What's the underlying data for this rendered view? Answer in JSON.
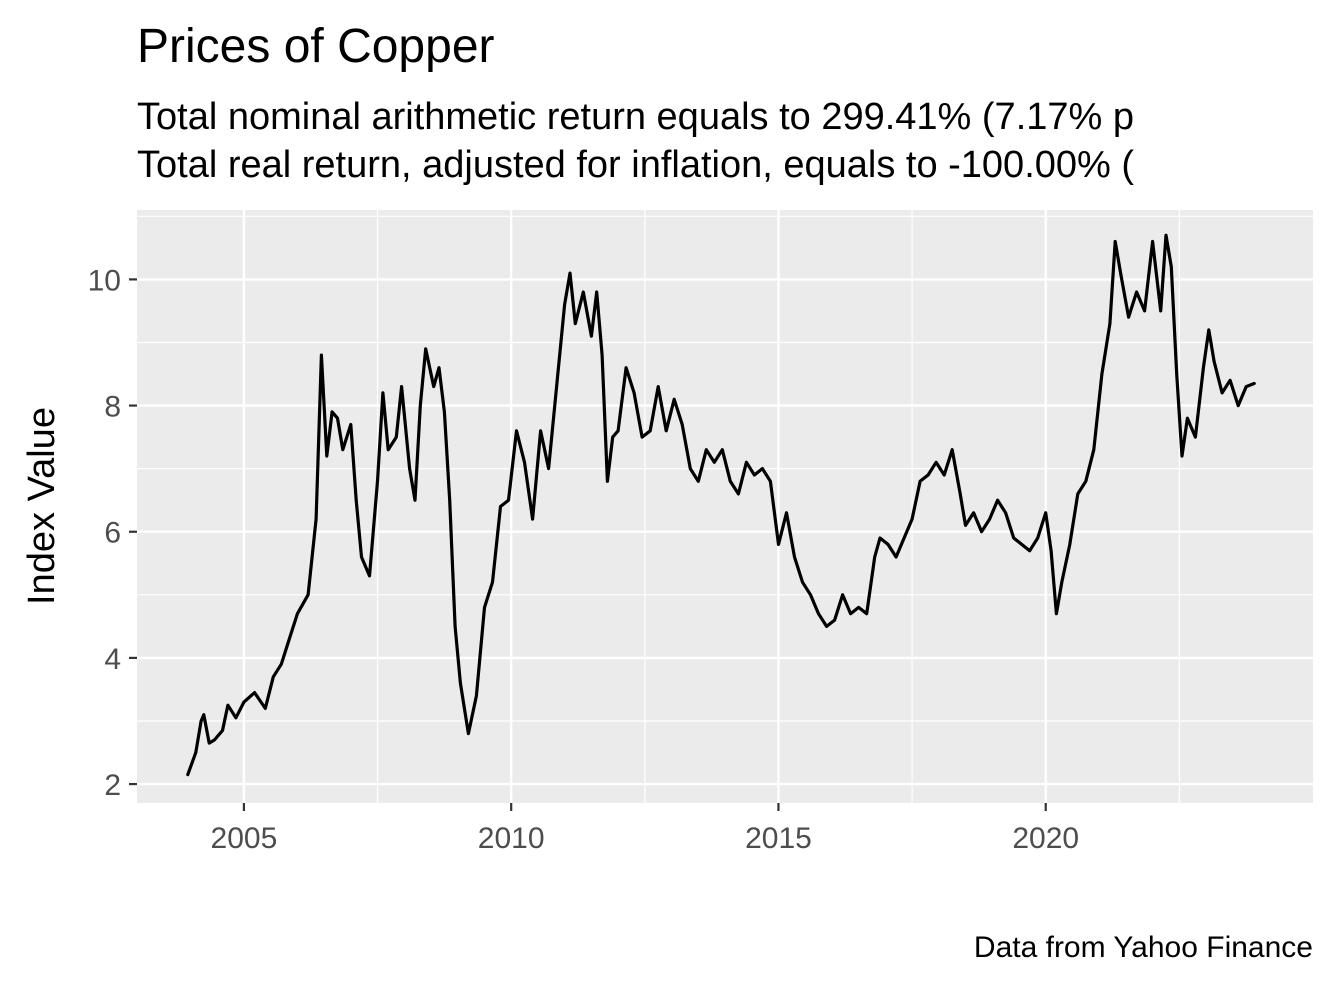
{
  "chart_data": {
    "type": "line",
    "title": "Prices of Copper",
    "subtitle_lines": [
      "Total nominal arithmetic return equals to 299.41% (7.17% p",
      "Total real return, adjusted for inflation, equals to -100.00% ("
    ],
    "xlabel": "",
    "ylabel": "Index Value",
    "caption": "Data from Yahoo Finance",
    "xlim": [
      2003.0,
      2025.0
    ],
    "ylim": [
      1.7,
      11.1
    ],
    "x_ticks": [
      2005,
      2010,
      2015,
      2020
    ],
    "x_tick_labels": [
      "2005",
      "2010",
      "2015",
      "2020"
    ],
    "y_ticks": [
      2,
      4,
      6,
      8,
      10
    ],
    "y_tick_labels": [
      "2",
      "4",
      "6",
      "8",
      "10"
    ],
    "grid": true,
    "colors": {
      "panel": "#ebebeb",
      "grid": "#ffffff",
      "line": "#000000",
      "tick_text": "#4d4d4d"
    },
    "series": [
      {
        "x": [
          2003.95,
          2004.1,
          2004.2,
          2004.25,
          2004.35,
          2004.45,
          2004.6,
          2004.7,
          2004.85,
          2005.0,
          2005.2,
          2005.4,
          2005.55,
          2005.7,
          2005.85,
          2006.0,
          2006.2,
          2006.35,
          2006.45,
          2006.55,
          2006.65,
          2006.75,
          2006.85,
          2007.0,
          2007.1,
          2007.2,
          2007.35,
          2007.5,
          2007.6,
          2007.7,
          2007.85,
          2007.95,
          2008.1,
          2008.2,
          2008.3,
          2008.4,
          2008.55,
          2008.65,
          2008.75,
          2008.85,
          2008.95,
          2009.05,
          2009.2,
          2009.35,
          2009.5,
          2009.65,
          2009.8,
          2009.95,
          2010.1,
          2010.25,
          2010.4,
          2010.55,
          2010.7,
          2010.85,
          2011.0,
          2011.1,
          2011.2,
          2011.35,
          2011.5,
          2011.6,
          2011.7,
          2011.8,
          2011.9,
          2012.0,
          2012.15,
          2012.3,
          2012.45,
          2012.6,
          2012.75,
          2012.9,
          2013.05,
          2013.2,
          2013.35,
          2013.5,
          2013.65,
          2013.8,
          2013.95,
          2014.1,
          2014.25,
          2014.4,
          2014.55,
          2014.7,
          2014.85,
          2015.0,
          2015.15,
          2015.3,
          2015.45,
          2015.6,
          2015.75,
          2015.9,
          2016.05,
          2016.2,
          2016.35,
          2016.5,
          2016.65,
          2016.8,
          2016.9,
          2017.05,
          2017.2,
          2017.35,
          2017.5,
          2017.65,
          2017.8,
          2017.95,
          2018.1,
          2018.25,
          2018.4,
          2018.5,
          2018.65,
          2018.8,
          2018.95,
          2019.1,
          2019.25,
          2019.4,
          2019.55,
          2019.7,
          2019.85,
          2020.0,
          2020.1,
          2020.2,
          2020.3,
          2020.45,
          2020.6,
          2020.75,
          2020.9,
          2021.05,
          2021.2,
          2021.3,
          2021.4,
          2021.55,
          2021.7,
          2021.85,
          2022.0,
          2022.15,
          2022.25,
          2022.35,
          2022.45,
          2022.55,
          2022.65,
          2022.8,
          2022.95,
          2023.05,
          2023.15,
          2023.3,
          2023.45,
          2023.6,
          2023.75,
          2023.9
        ],
        "y": [
          2.15,
          2.5,
          3.0,
          3.1,
          2.65,
          2.7,
          2.85,
          3.25,
          3.05,
          3.3,
          3.45,
          3.2,
          3.7,
          3.9,
          4.3,
          4.7,
          5.0,
          6.2,
          8.8,
          7.2,
          7.9,
          7.8,
          7.3,
          7.7,
          6.5,
          5.6,
          5.3,
          6.8,
          8.2,
          7.3,
          7.5,
          8.3,
          7.0,
          6.5,
          8.0,
          8.9,
          8.3,
          8.6,
          7.9,
          6.5,
          4.5,
          3.6,
          2.8,
          3.4,
          4.8,
          5.2,
          6.4,
          6.5,
          7.6,
          7.1,
          6.2,
          7.6,
          7.0,
          8.3,
          9.6,
          10.1,
          9.3,
          9.8,
          9.1,
          9.8,
          8.8,
          6.8,
          7.5,
          7.6,
          8.6,
          8.2,
          7.5,
          7.6,
          8.3,
          7.6,
          8.1,
          7.7,
          7.0,
          6.8,
          7.3,
          7.1,
          7.3,
          6.8,
          6.6,
          7.1,
          6.9,
          7.0,
          6.8,
          5.8,
          6.3,
          5.6,
          5.2,
          5.0,
          4.7,
          4.5,
          4.6,
          5.0,
          4.7,
          4.8,
          4.7,
          5.6,
          5.9,
          5.8,
          5.6,
          5.9,
          6.2,
          6.8,
          6.9,
          7.1,
          6.9,
          7.3,
          6.6,
          6.1,
          6.3,
          6.0,
          6.2,
          6.5,
          6.3,
          5.9,
          5.8,
          5.7,
          5.9,
          6.3,
          5.7,
          4.7,
          5.2,
          5.8,
          6.6,
          6.8,
          7.3,
          8.5,
          9.3,
          10.6,
          10.1,
          9.4,
          9.8,
          9.5,
          10.6,
          9.5,
          10.7,
          10.2,
          8.5,
          7.2,
          7.8,
          7.5,
          8.6,
          9.2,
          8.7,
          8.2,
          8.4,
          8.0,
          8.3,
          8.35
        ]
      }
    ]
  }
}
